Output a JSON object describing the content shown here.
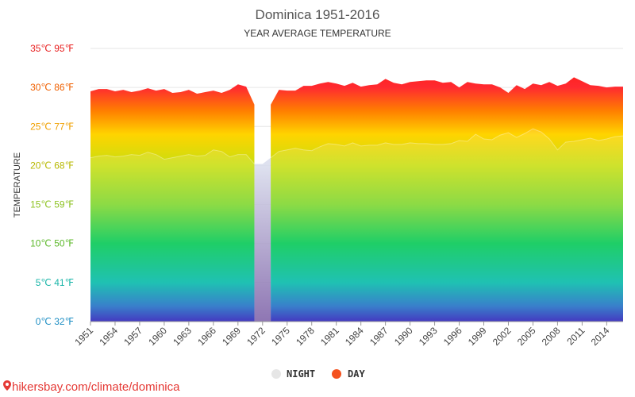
{
  "chart_data": {
    "type": "area",
    "title": "Dominica 1951-2016",
    "subtitle": "YEAR AVERAGE TEMPERATURE",
    "ylabel": "TEMPERATURE",
    "ylim": [
      0,
      35
    ],
    "y_ticks": [
      {
        "value": 0,
        "label": "0℃ 32℉",
        "color": "#1f8fc4"
      },
      {
        "value": 5,
        "label": "5℃ 41℉",
        "color": "#19b5a8"
      },
      {
        "value": 10,
        "label": "10℃ 50℉",
        "color": "#5cb82a"
      },
      {
        "value": 15,
        "label": "15℃ 59℉",
        "color": "#8cc220"
      },
      {
        "value": 20,
        "label": "20℃ 68℉",
        "color": "#b7b800"
      },
      {
        "value": 25,
        "label": "25℃ 77℉",
        "color": "#f0a000"
      },
      {
        "value": 30,
        "label": "30℃ 86℉",
        "color": "#f06000"
      },
      {
        "value": 35,
        "label": "35℃ 95℉",
        "color": "#e82020"
      }
    ],
    "x_tick_labels": [
      "1951",
      "1954",
      "1957",
      "1960",
      "1963",
      "1966",
      "1969",
      "1972",
      "1975",
      "1978",
      "1981",
      "1984",
      "1987",
      "1990",
      "1993",
      "1996",
      "1999",
      "2002",
      "2005",
      "2008",
      "2011",
      "2014"
    ],
    "x": [
      1951,
      1952,
      1953,
      1954,
      1955,
      1956,
      1957,
      1958,
      1959,
      1960,
      1961,
      1962,
      1963,
      1964,
      1965,
      1966,
      1967,
      1968,
      1969,
      1970,
      1971,
      1972,
      1973,
      1974,
      1975,
      1976,
      1977,
      1978,
      1979,
      1980,
      1981,
      1982,
      1983,
      1984,
      1985,
      1986,
      1987,
      1988,
      1989,
      1990,
      1991,
      1992,
      1993,
      1994,
      1995,
      1996,
      1997,
      1998,
      1999,
      2000,
      2001,
      2002,
      2003,
      2004,
      2005,
      2006,
      2007,
      2008,
      2009,
      2010,
      2011,
      2012,
      2013,
      2014,
      2015,
      2016
    ],
    "series": [
      {
        "name": "DAY",
        "marker_color": "#f4511e",
        "values": [
          29.5,
          29.8,
          29.8,
          29.5,
          29.7,
          29.4,
          29.6,
          29.9,
          29.6,
          29.8,
          29.3,
          29.4,
          29.7,
          29.2,
          29.4,
          29.6,
          29.3,
          29.7,
          30.4,
          30.1,
          27.8,
          null,
          27.8,
          29.7,
          29.6,
          29.6,
          30.2,
          30.2,
          30.5,
          30.7,
          30.5,
          30.2,
          30.6,
          30.1,
          30.3,
          30.4,
          31.1,
          30.6,
          30.4,
          30.7,
          30.8,
          30.9,
          30.9,
          30.6,
          30.7,
          30.0,
          30.7,
          30.5,
          30.4,
          30.4,
          30.0,
          29.3,
          30.3,
          29.8,
          30.5,
          30.3,
          30.7,
          30.2,
          30.5,
          31.3,
          30.8,
          30.3,
          30.2,
          30.0,
          30.1,
          30.1
        ]
      },
      {
        "name": "NIGHT",
        "marker_color": "#e6e6e6",
        "values": [
          21.0,
          21.2,
          21.3,
          21.1,
          21.2,
          21.4,
          21.3,
          21.7,
          21.4,
          20.8,
          21.0,
          21.2,
          21.4,
          21.2,
          21.3,
          22.0,
          21.8,
          21.1,
          21.4,
          21.4,
          20.2,
          20.2,
          21.0,
          21.8,
          22.0,
          22.2,
          22.0,
          21.9,
          22.4,
          22.8,
          22.7,
          22.5,
          22.9,
          22.5,
          22.6,
          22.6,
          22.9,
          22.7,
          22.7,
          22.9,
          22.8,
          22.8,
          22.7,
          22.7,
          22.8,
          23.2,
          23.1,
          24.0,
          23.4,
          23.3,
          23.9,
          24.2,
          23.6,
          24.1,
          24.7,
          24.3,
          23.4,
          22.0,
          23.0,
          23.1,
          23.3,
          23.5,
          23.2,
          23.4,
          23.7,
          23.8
        ]
      }
    ],
    "grid": true,
    "legend_position": "bottom-center",
    "colors": {
      "title": "#555555",
      "subtitle": "#333333",
      "axis_label": "#333333",
      "x_tick": "#444444",
      "grid": "#e6e6e6",
      "gradient_stops": [
        {
          "temp": 35,
          "color": "#ff1100"
        },
        {
          "temp": 30,
          "color": "#ff2a30"
        },
        {
          "temp": 27,
          "color": "#ff7f00"
        },
        {
          "temp": 24,
          "color": "#ffd400"
        },
        {
          "temp": 20,
          "color": "#c8de10"
        },
        {
          "temp": 15,
          "color": "#7dd62c"
        },
        {
          "temp": 10,
          "color": "#00c853"
        },
        {
          "temp": 5,
          "color": "#00b9a8"
        },
        {
          "temp": 2,
          "color": "#1e6fc4"
        },
        {
          "temp": 0,
          "color": "#2a1fb8"
        }
      ],
      "night_gap_top": "#d8dcec",
      "night_gap_bottom": "#7b5ea6"
    }
  },
  "watermark": "hikersbay.com/climate/dominica"
}
